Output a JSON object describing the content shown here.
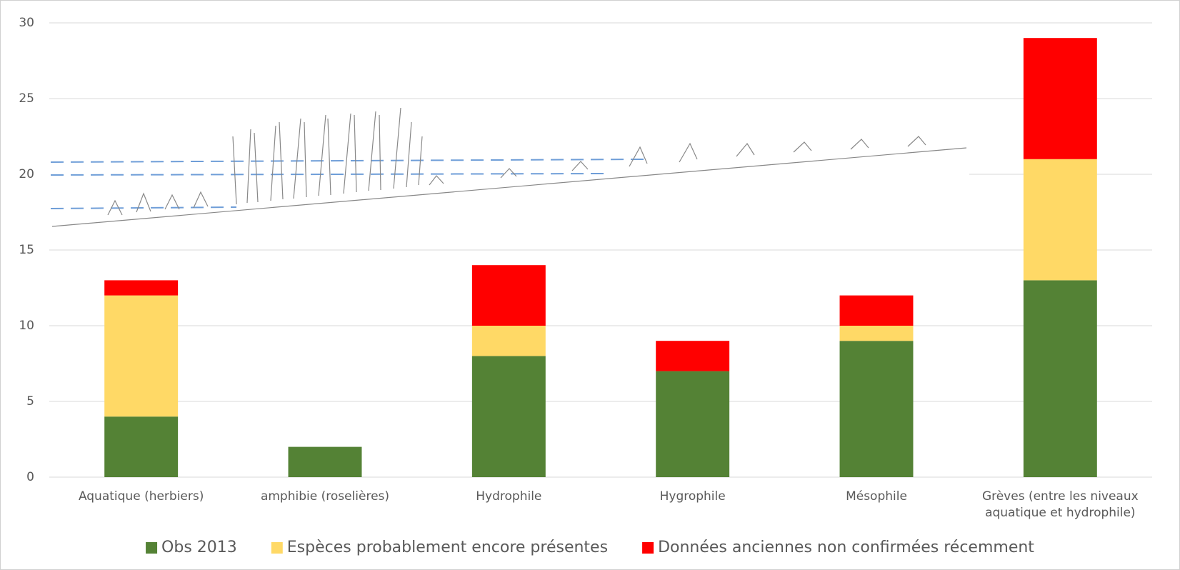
{
  "chart_data": {
    "type": "stacked_bar",
    "categories": [
      "Aquatique (herbiers)",
      "amphibie (roselières)",
      "Hydrophile",
      "Hygrophile",
      "Mésophile",
      "Grèves (entre les niveaux aquatique et hydrophile)"
    ],
    "series": [
      {
        "name": "Obs 2013",
        "color": "#548235",
        "values": [
          4,
          2,
          8,
          7,
          9,
          13
        ]
      },
      {
        "name": "Espèces probablement encore présentes",
        "color": "#ffd966",
        "values": [
          8,
          0,
          2,
          0,
          1,
          8
        ]
      },
      {
        "name": "Données anciennes non confirmées récemment",
        "color": "#ff0000",
        "values": [
          1,
          0,
          4,
          2,
          2,
          8
        ]
      }
    ],
    "ylim": [
      0,
      30
    ],
    "yticks": [
      0,
      5,
      10,
      15,
      20,
      25,
      30
    ],
    "grid": true,
    "legend": "bottom"
  }
}
